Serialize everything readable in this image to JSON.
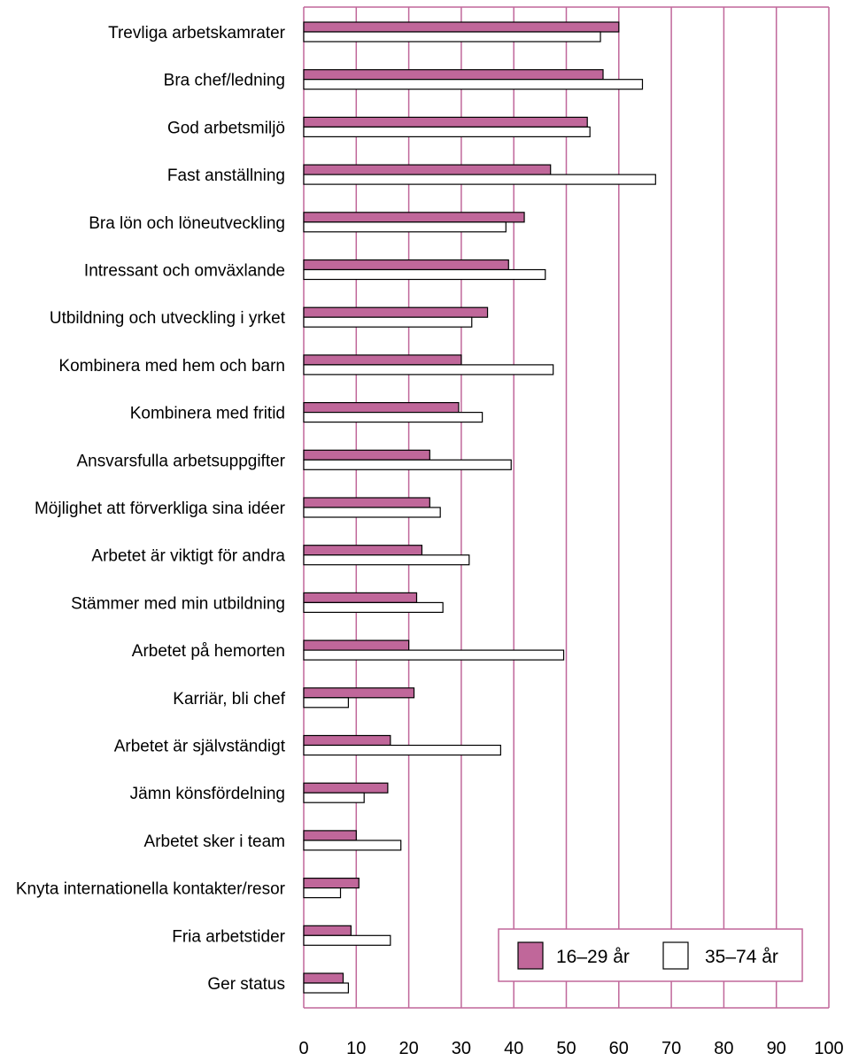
{
  "chart_data": {
    "type": "bar",
    "orientation": "horizontal",
    "categories": [
      "Trevliga arbetskamrater",
      "Bra chef/ledning",
      "God arbetsmiljö",
      "Fast anställning",
      "Bra lön och löneutveckling",
      "Intressant och omväxlande",
      "Utbildning och utveckling i yrket",
      "Kombinera med hem och barn",
      "Kombinera med fritid",
      "Ansvarsfulla arbetsuppgifter",
      "Möjlighet att förverkliga sina idéer",
      "Arbetet är viktigt för andra",
      "Stämmer med min utbildning",
      "Arbetet på hemorten",
      "Karriär, bli chef",
      "Arbetet är självständigt",
      "Jämn könsfördelning",
      "Arbetet sker i team",
      "Knyta internationella kontakter/resor",
      "Fria arbetstider",
      "Ger status"
    ],
    "series": [
      {
        "name": "16–29 år",
        "color": "#c0679a",
        "values": [
          60,
          57,
          54,
          47,
          42,
          39,
          35,
          30,
          29.5,
          24,
          24,
          22.5,
          21.5,
          20,
          21,
          16.5,
          16,
          10,
          10.5,
          9,
          7.5
        ]
      },
      {
        "name": "35–74 år",
        "color": "#ffffff",
        "values": [
          56.5,
          64.5,
          54.5,
          67,
          38.5,
          46,
          32,
          47.5,
          34,
          39.5,
          26,
          31.5,
          26.5,
          49.5,
          8.5,
          37.5,
          11.5,
          18.5,
          7,
          16.5,
          8.5
        ]
      }
    ],
    "xlim": [
      0,
      100
    ],
    "x_ticks": [
      "0",
      "10",
      "20",
      "30",
      "40",
      "50",
      "60",
      "70",
      "80",
      "90",
      "100"
    ],
    "grid": true,
    "grid_color": "#c0679a",
    "legend_position": "bottom-right"
  }
}
